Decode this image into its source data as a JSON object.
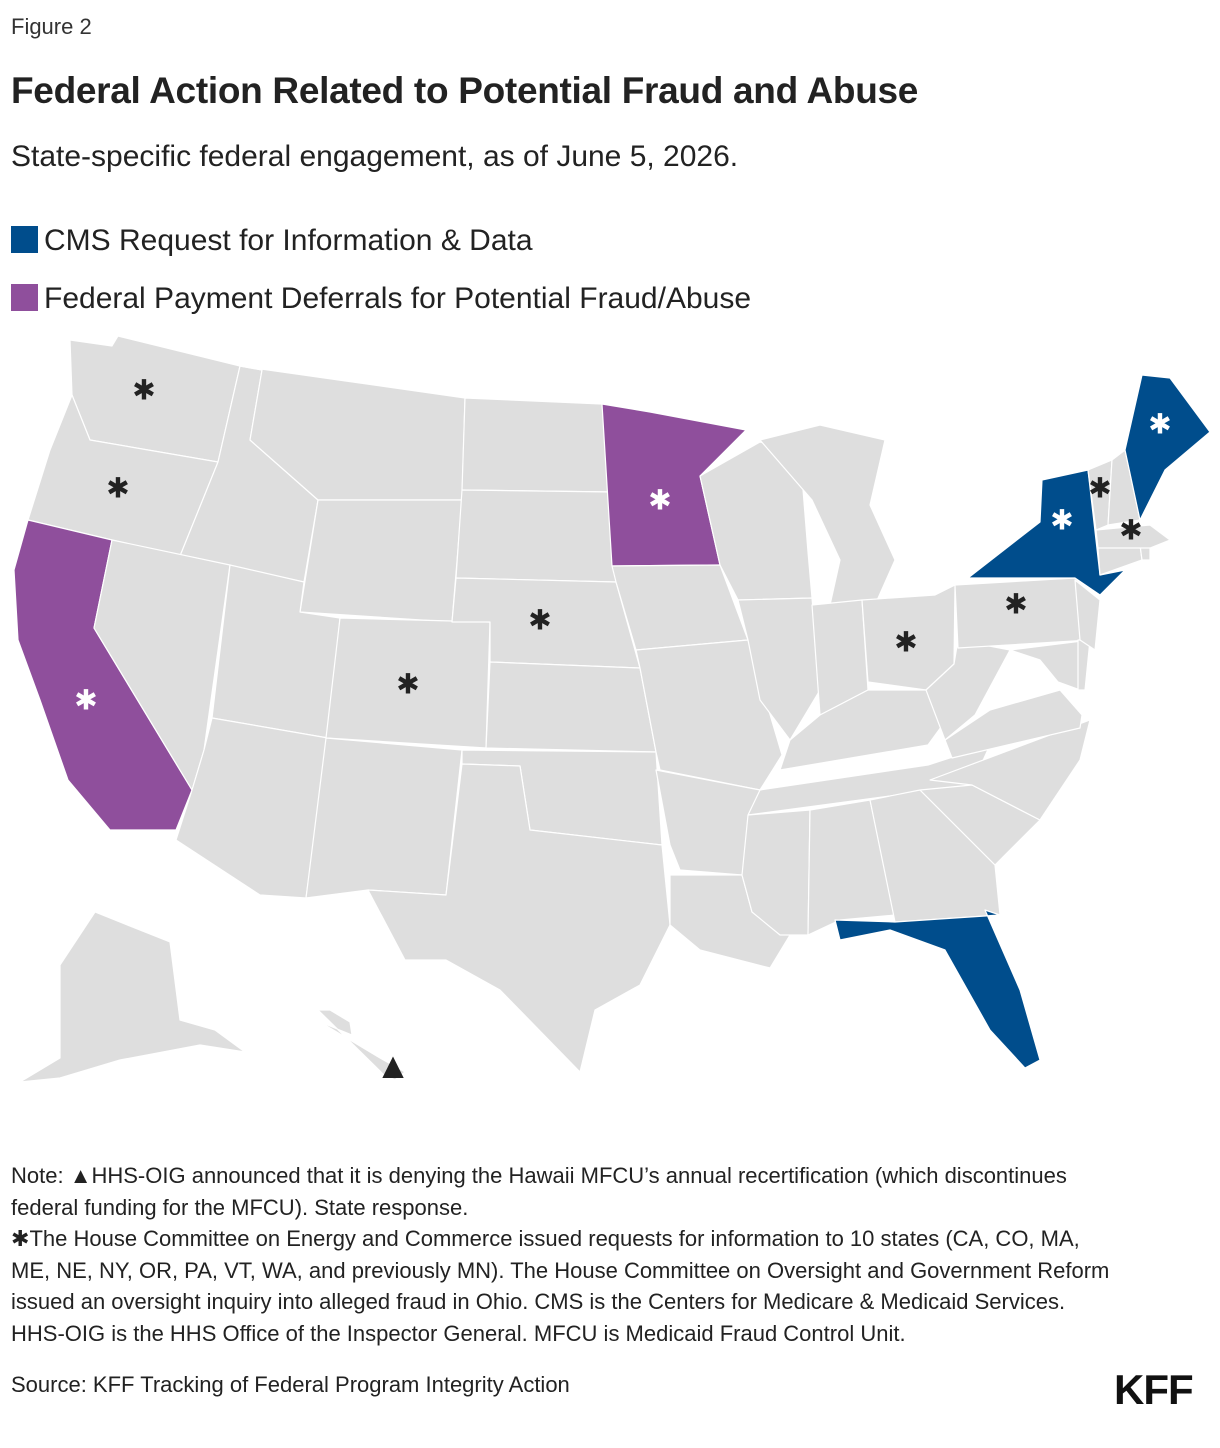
{
  "figure_label": "Figure 2",
  "title": "Federal Action Related to Potential Fraud and Abuse",
  "subtitle": "State-specific federal engagement, as of June 5, 2026.",
  "colors": {
    "cms": "#004d8c",
    "deferral": "#8f4f9c",
    "other": "#dedede",
    "ink": "#222222"
  },
  "legend": {
    "cms": "CMS Request for Information & Data",
    "deferral": "Federal Payment Deferrals for Potential Fraud/Abuse"
  },
  "map": {
    "state_categories": {
      "NY": "cms",
      "ME": "cms",
      "FL": "cms",
      "MN": "deferral",
      "CA": "deferral"
    },
    "asterisk_states": [
      "WA",
      "OR",
      "CA",
      "CO",
      "NE",
      "MN",
      "OH",
      "PA",
      "NY",
      "VT",
      "MA",
      "ME"
    ],
    "triangle_states": [
      "HI"
    ],
    "asterisk_symbol": "✱",
    "triangle_symbol": "▲"
  },
  "notes": {
    "triangle_symbol": "▲",
    "line1_prefix": "Note: ",
    "line1": "HHS-OIG announced that it is denying the Hawaii MFCU’s annual recertification (which discontinues federal funding for the MFCU). State response.",
    "asterisk_symbol": "✱",
    "line2": "The House Committee on Energy and Commerce issued requests for information to 10 states (CA, CO, MA, ME, NE, NY, OR, PA, VT, WA, and previously MN). The House Committee on Oversight and Government Reform issued an oversight inquiry into alleged fraud in Ohio. CMS is the Centers for Medicare & Medicaid Services. HHS-OIG is the HHS Office of the Inspector General. MFCU is Medicaid Fraud Control Unit."
  },
  "source": "Source: KFF Tracking of Federal Program Integrity Action",
  "logo": "KFF"
}
